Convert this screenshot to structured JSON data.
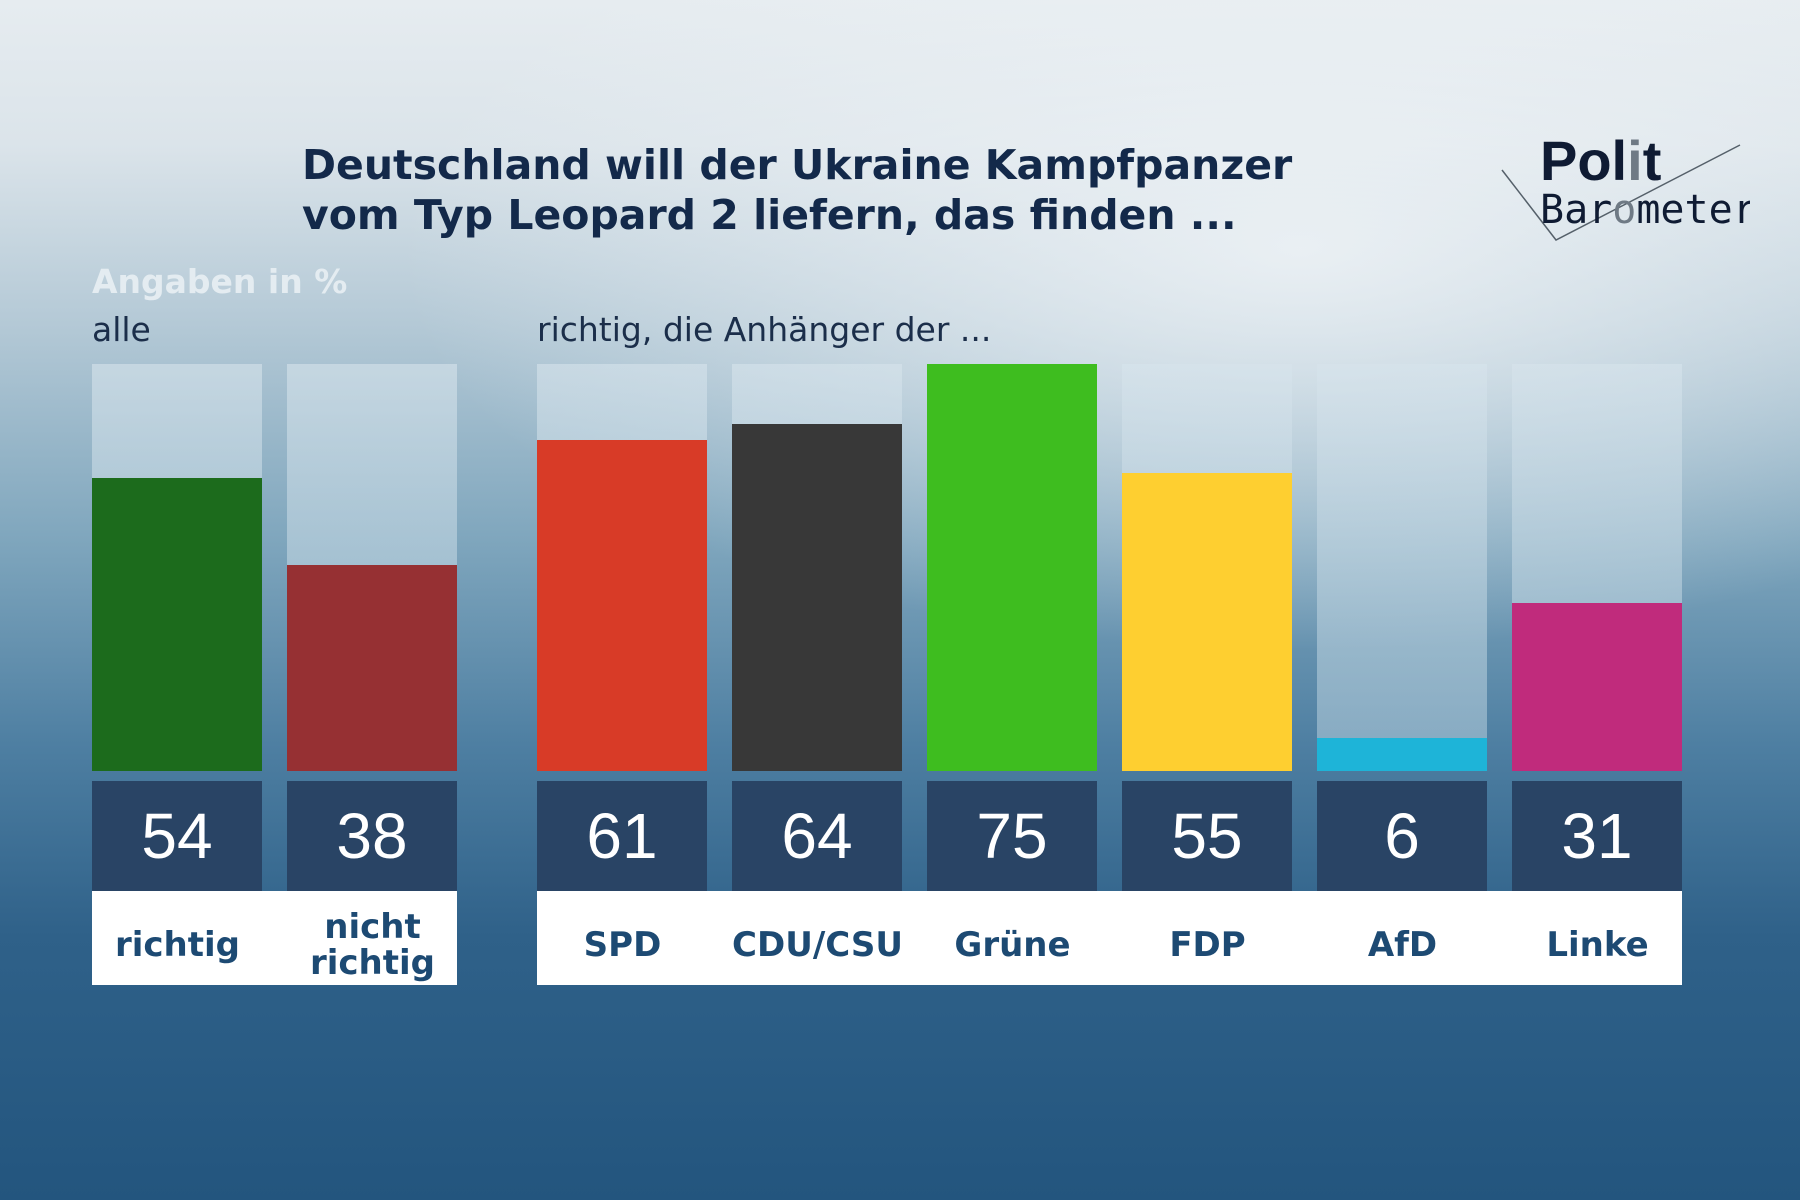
{
  "chart_data": {
    "type": "bar",
    "title": "Deutschland will der Ukraine Kampfpanzer vom Typ Leopard 2 liefern, das finden ...",
    "unit_label": "Angaben in %",
    "ylim": [
      0,
      75
    ],
    "groups": [
      {
        "label": "alle",
        "categories": [
          "richtig",
          "nicht richtig"
        ],
        "values": [
          54,
          38
        ],
        "colors": [
          "#1c6b1c",
          "#963033"
        ]
      },
      {
        "label": "richtig, die Anhänger der ...",
        "categories": [
          "SPD",
          "CDU/CSU",
          "Grüne",
          "FDP",
          "AfD",
          "Linke"
        ],
        "values": [
          61,
          64,
          75,
          55,
          6,
          31
        ],
        "colors": [
          "#d83b27",
          "#383838",
          "#3ebd1f",
          "#fecf30",
          "#1eb4d8",
          "#c02b7c"
        ]
      }
    ]
  },
  "logo": {
    "line1": "Polit",
    "line2": "Barometer"
  }
}
